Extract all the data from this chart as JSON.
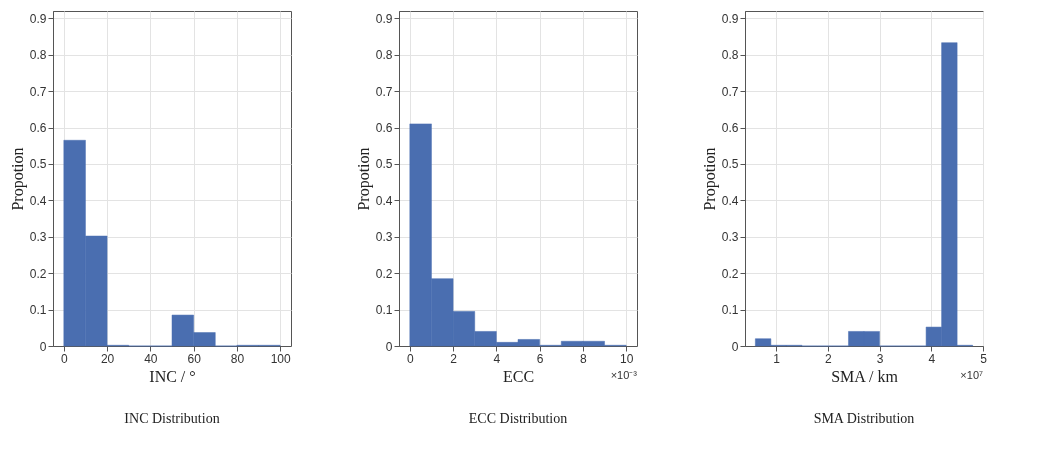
{
  "chart_data": [
    {
      "type": "histogram",
      "title": "INC Distribution",
      "xlabel": "INC / °",
      "ylabel": "Propotion",
      "color": "#4a6eb0",
      "bins": [
        0,
        10,
        20,
        30,
        40,
        50,
        60,
        70,
        80,
        90,
        100
      ],
      "values": [
        0.565,
        0.302,
        0.002,
        0,
        0,
        0.085,
        0.037,
        0,
        0.002,
        0.002
      ],
      "xlim": [
        -5,
        105
      ],
      "xticks": [
        0,
        20,
        40,
        60,
        80,
        100
      ],
      "ylim": [
        0,
        0.92
      ],
      "yticks": [
        0,
        0.1,
        0.2,
        0.3,
        0.4,
        0.5,
        0.6,
        0.7,
        0.8,
        0.9
      ],
      "grid": true
    },
    {
      "type": "histogram",
      "title": "ECC Distribution",
      "xlabel": "ECC",
      "ylabel": "Propotion",
      "color": "#4a6eb0",
      "bins": [
        0,
        1,
        2,
        3,
        4,
        5,
        6,
        7,
        8,
        9,
        10
      ],
      "values": [
        0.61,
        0.185,
        0.095,
        0.04,
        0.01,
        0.018,
        0.002,
        0.013,
        0.013,
        0.002
      ],
      "xlim": [
        -0.5,
        10.5
      ],
      "xticks": [
        0,
        2,
        4,
        6,
        8,
        10
      ],
      "ylim": [
        0,
        0.92
      ],
      "yticks": [
        0,
        0.1,
        0.2,
        0.3,
        0.4,
        0.5,
        0.6,
        0.7,
        0.8,
        0.9
      ],
      "grid": true,
      "annotations": [
        "×10⁻³"
      ]
    },
    {
      "type": "histogram",
      "title": "SMA Distribution",
      "xlabel": "SMA / km",
      "ylabel": "Propotion",
      "color": "#4a6eb0",
      "bins": [
        0.6,
        0.9,
        1.2,
        1.5,
        1.8,
        2.1,
        2.4,
        2.7,
        3.0,
        3.3,
        3.6,
        3.9,
        4.2,
        4.5,
        4.8
      ],
      "values": [
        0.02,
        0.002,
        0.002,
        0,
        0,
        0,
        0.04,
        0.04,
        0,
        0,
        0,
        0.052,
        0.833,
        0.002
      ],
      "xlim": [
        0.4,
        5
      ],
      "xticks": [
        1,
        2,
        3,
        4,
        5
      ],
      "ylim": [
        0,
        0.92
      ],
      "yticks": [
        0,
        0.1,
        0.2,
        0.3,
        0.4,
        0.5,
        0.6,
        0.7,
        0.8,
        0.9
      ],
      "grid": true,
      "annotations": [
        "×10⁷"
      ]
    }
  ]
}
